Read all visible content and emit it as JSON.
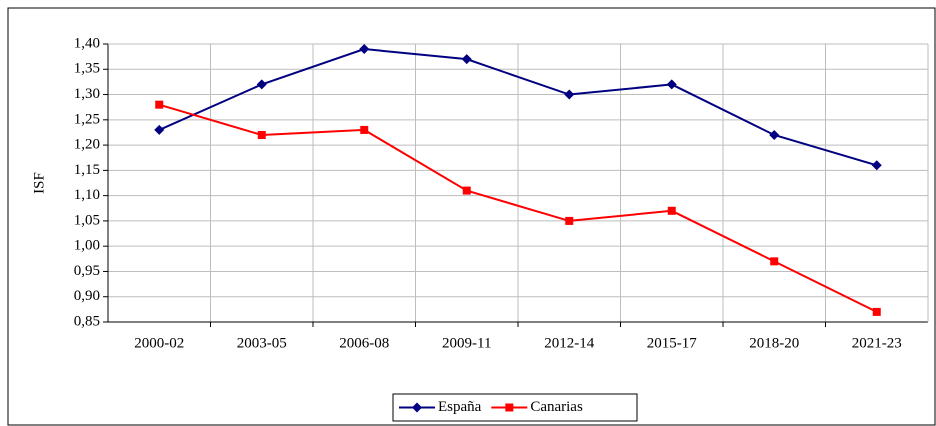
{
  "chart_data": {
    "type": "line",
    "y_label": "ISF",
    "categories": [
      "2000-02",
      "2003-05",
      "2006-08",
      "2009-11",
      "2012-14",
      "2015-17",
      "2018-20",
      "2021-23"
    ],
    "series": [
      {
        "name": "España",
        "color": "#000080",
        "marker": "diamond",
        "values": [
          1.23,
          1.32,
          1.39,
          1.37,
          1.3,
          1.32,
          1.22,
          1.16
        ]
      },
      {
        "name": "Canarias",
        "color": "#ff0000",
        "marker": "square",
        "values": [
          1.28,
          1.22,
          1.23,
          1.11,
          1.05,
          1.07,
          0.97,
          0.87
        ]
      }
    ],
    "ylim": [
      0.85,
      1.4
    ],
    "yticks": [
      {
        "value": 0.85,
        "label": "0,85"
      },
      {
        "value": 0.9,
        "label": "0,90"
      },
      {
        "value": 0.95,
        "label": "0,95"
      },
      {
        "value": 1.0,
        "label": "1,00"
      },
      {
        "value": 1.05,
        "label": "1,05"
      },
      {
        "value": 1.1,
        "label": "1,10"
      },
      {
        "value": 1.15,
        "label": "1,15"
      },
      {
        "value": 1.2,
        "label": "1,20"
      },
      {
        "value": 1.25,
        "label": "1,25"
      },
      {
        "value": 1.3,
        "label": "1,30"
      },
      {
        "value": 1.35,
        "label": "1,35"
      },
      {
        "value": 1.4,
        "label": "1,40"
      }
    ],
    "grid": true,
    "legend": "bottom"
  }
}
